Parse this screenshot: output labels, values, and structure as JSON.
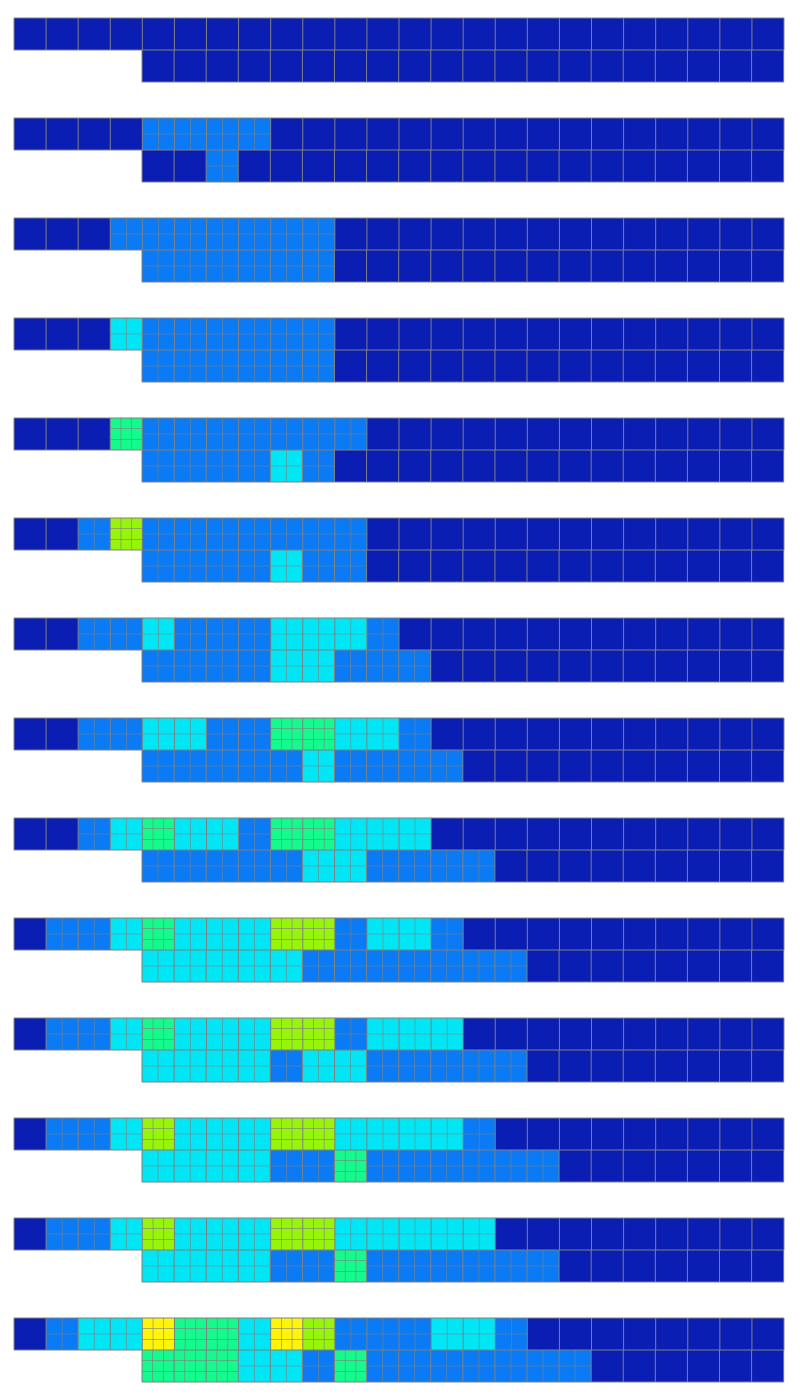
{
  "colors": {
    "background": "#ffffff",
    "grid_line": "#808080",
    "level_0": "#0A1EB4",
    "level_1": "#0A7AF5",
    "level_2": "#00E6F5",
    "level_3": "#14FA8C",
    "level_4": "#96F50A",
    "level_5": "#FFF50A"
  },
  "frames": [
    {
      "rows": [
        [
          0,
          0,
          0,
          0,
          0,
          0,
          0,
          0,
          0,
          0,
          0,
          0,
          0,
          0,
          0,
          0,
          0,
          0,
          0,
          0,
          0,
          0,
          0,
          0
        ],
        [
          0,
          0,
          0,
          0,
          0,
          0,
          0,
          0,
          0,
          0,
          0,
          0,
          0,
          0,
          0,
          0,
          0,
          0,
          0,
          0
        ]
      ]
    },
    {
      "rows": [
        [
          0,
          0,
          0,
          0,
          1,
          1,
          1,
          1,
          0,
          0,
          0,
          0,
          0,
          0,
          0,
          0,
          0,
          0,
          0,
          0,
          0,
          0,
          0,
          0
        ],
        [
          0,
          0,
          1,
          0,
          0,
          0,
          0,
          0,
          0,
          0,
          0,
          0,
          0,
          0,
          0,
          0,
          0,
          0,
          0,
          0
        ]
      ]
    },
    {
      "rows": [
        [
          0,
          0,
          0,
          1,
          1,
          1,
          1,
          1,
          1,
          1,
          0,
          0,
          0,
          0,
          0,
          0,
          0,
          0,
          0,
          0,
          0,
          0,
          0,
          0
        ],
        [
          1,
          1,
          1,
          1,
          1,
          1,
          0,
          0,
          0,
          0,
          0,
          0,
          0,
          0,
          0,
          0,
          0,
          0,
          0,
          0
        ]
      ]
    },
    {
      "rows": [
        [
          0,
          0,
          0,
          2,
          1,
          1,
          1,
          1,
          1,
          1,
          0,
          0,
          0,
          0,
          0,
          0,
          0,
          0,
          0,
          0,
          0,
          0,
          0,
          0
        ],
        [
          1,
          1,
          1,
          1,
          1,
          1,
          0,
          0,
          0,
          0,
          0,
          0,
          0,
          0,
          0,
          0,
          0,
          0,
          0,
          0
        ]
      ]
    },
    {
      "rows": [
        [
          0,
          0,
          0,
          3,
          1,
          1,
          1,
          1,
          1,
          1,
          1,
          0,
          0,
          0,
          0,
          0,
          0,
          0,
          0,
          0,
          0,
          0,
          0,
          0
        ],
        [
          1,
          1,
          1,
          1,
          2,
          1,
          0,
          0,
          0,
          0,
          0,
          0,
          0,
          0,
          0,
          0,
          0,
          0,
          0,
          0
        ]
      ]
    },
    {
      "rows": [
        [
          0,
          0,
          1,
          4,
          1,
          1,
          1,
          1,
          1,
          1,
          1,
          0,
          0,
          0,
          0,
          0,
          0,
          0,
          0,
          0,
          0,
          0,
          0,
          0
        ],
        [
          1,
          1,
          1,
          1,
          2,
          1,
          1,
          0,
          0,
          0,
          0,
          0,
          0,
          0,
          0,
          0,
          0,
          0,
          0,
          0
        ]
      ]
    },
    {
      "rows": [
        [
          0,
          0,
          1,
          1,
          2,
          1,
          1,
          1,
          2,
          2,
          2,
          1,
          0,
          0,
          0,
          0,
          0,
          0,
          0,
          0,
          0,
          0,
          0,
          0
        ],
        [
          1,
          1,
          1,
          1,
          2,
          2,
          1,
          1,
          1,
          0,
          0,
          0,
          0,
          0,
          0,
          0,
          0,
          0,
          0,
          0
        ]
      ]
    },
    {
      "rows": [
        [
          0,
          0,
          1,
          1,
          2,
          2,
          1,
          1,
          3,
          3,
          2,
          2,
          1,
          0,
          0,
          0,
          0,
          0,
          0,
          0,
          0,
          0,
          0,
          0
        ],
        [
          1,
          1,
          1,
          1,
          1,
          2,
          1,
          1,
          1,
          1,
          0,
          0,
          0,
          0,
          0,
          0,
          0,
          0,
          0,
          0
        ]
      ]
    },
    {
      "rows": [
        [
          0,
          0,
          1,
          2,
          3,
          2,
          2,
          1,
          3,
          3,
          2,
          2,
          2,
          0,
          0,
          0,
          0,
          0,
          0,
          0,
          0,
          0,
          0,
          0
        ],
        [
          1,
          1,
          1,
          1,
          1,
          2,
          2,
          1,
          1,
          1,
          1,
          0,
          0,
          0,
          0,
          0,
          0,
          0,
          0,
          0
        ]
      ]
    },
    {
      "rows": [
        [
          0,
          1,
          1,
          2,
          3,
          2,
          2,
          2,
          4,
          4,
          1,
          2,
          2,
          1,
          0,
          0,
          0,
          0,
          0,
          0,
          0,
          0,
          0,
          0
        ],
        [
          2,
          2,
          2,
          2,
          2,
          1,
          1,
          1,
          1,
          1,
          1,
          1,
          0,
          0,
          0,
          0,
          0,
          0,
          0,
          0
        ]
      ]
    },
    {
      "rows": [
        [
          0,
          1,
          1,
          2,
          3,
          2,
          2,
          2,
          4,
          4,
          1,
          2,
          2,
          2,
          0,
          0,
          0,
          0,
          0,
          0,
          0,
          0,
          0,
          0
        ],
        [
          2,
          2,
          2,
          2,
          1,
          2,
          2,
          1,
          1,
          1,
          1,
          1,
          0,
          0,
          0,
          0,
          0,
          0,
          0,
          0
        ]
      ]
    },
    {
      "rows": [
        [
          0,
          1,
          1,
          2,
          4,
          2,
          2,
          2,
          4,
          4,
          2,
          2,
          2,
          2,
          1,
          0,
          0,
          0,
          0,
          0,
          0,
          0,
          0,
          0
        ],
        [
          2,
          2,
          2,
          2,
          1,
          1,
          3,
          1,
          1,
          1,
          1,
          1,
          1,
          0,
          0,
          0,
          0,
          0,
          0,
          0
        ]
      ]
    },
    {
      "rows": [
        [
          0,
          1,
          1,
          2,
          4,
          2,
          2,
          2,
          4,
          4,
          2,
          2,
          2,
          2,
          2,
          0,
          0,
          0,
          0,
          0,
          0,
          0,
          0,
          0
        ],
        [
          2,
          2,
          2,
          2,
          1,
          1,
          3,
          1,
          1,
          1,
          1,
          1,
          1,
          0,
          0,
          0,
          0,
          0,
          0,
          0
        ]
      ]
    },
    {
      "rows": [
        [
          0,
          1,
          2,
          2,
          5,
          3,
          3,
          2,
          5,
          4,
          1,
          1,
          1,
          2,
          2,
          1,
          0,
          0,
          0,
          0,
          0,
          0,
          0,
          0
        ],
        [
          3,
          3,
          3,
          2,
          2,
          1,
          3,
          1,
          1,
          1,
          1,
          1,
          1,
          1,
          0,
          0,
          0,
          0,
          0,
          0
        ]
      ]
    }
  ]
}
